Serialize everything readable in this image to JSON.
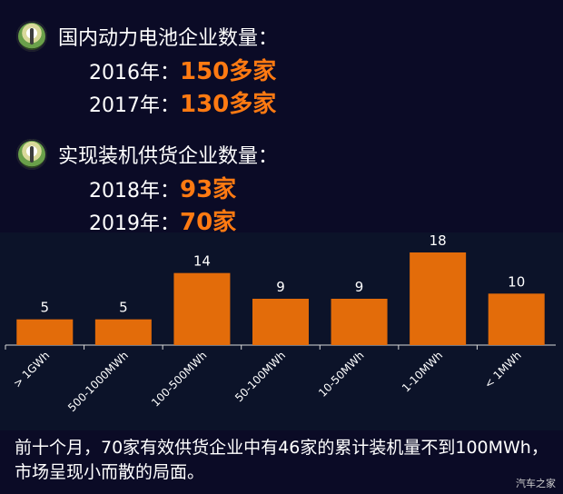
{
  "stats": [
    {
      "title": "国内动力电池企业数量：",
      "rows": [
        {
          "year": "2016年：",
          "value": "150多家"
        },
        {
          "year": "2017年：",
          "value": "130多家"
        }
      ]
    },
    {
      "title": "实现装机供货企业数量：",
      "rows": [
        {
          "year": "2018年：",
          "value": "93家"
        },
        {
          "year": "2019年：",
          "value": "70家"
        }
      ]
    }
  ],
  "chart_data": {
    "type": "bar",
    "categories": [
      "> 1GWh",
      "500-1000MWh",
      "100-500MWh",
      "50-100MWh",
      "10-50MWh",
      "1-10MWh",
      "< 1MWh"
    ],
    "values": [
      5,
      5,
      14,
      9,
      9,
      18,
      10
    ],
    "ylim": [
      0,
      18
    ],
    "grid": false,
    "bar_color": "#e36c0a"
  },
  "caption": "前十个月，70家有效供货企业中有46家的累计装机量不到100MWh，市场呈现小而散的局面。",
  "watermark": "汽车之家",
  "colors": {
    "highlight": "#ff7a12",
    "background": "#0b0b26",
    "chart_background": "#0c1329"
  }
}
